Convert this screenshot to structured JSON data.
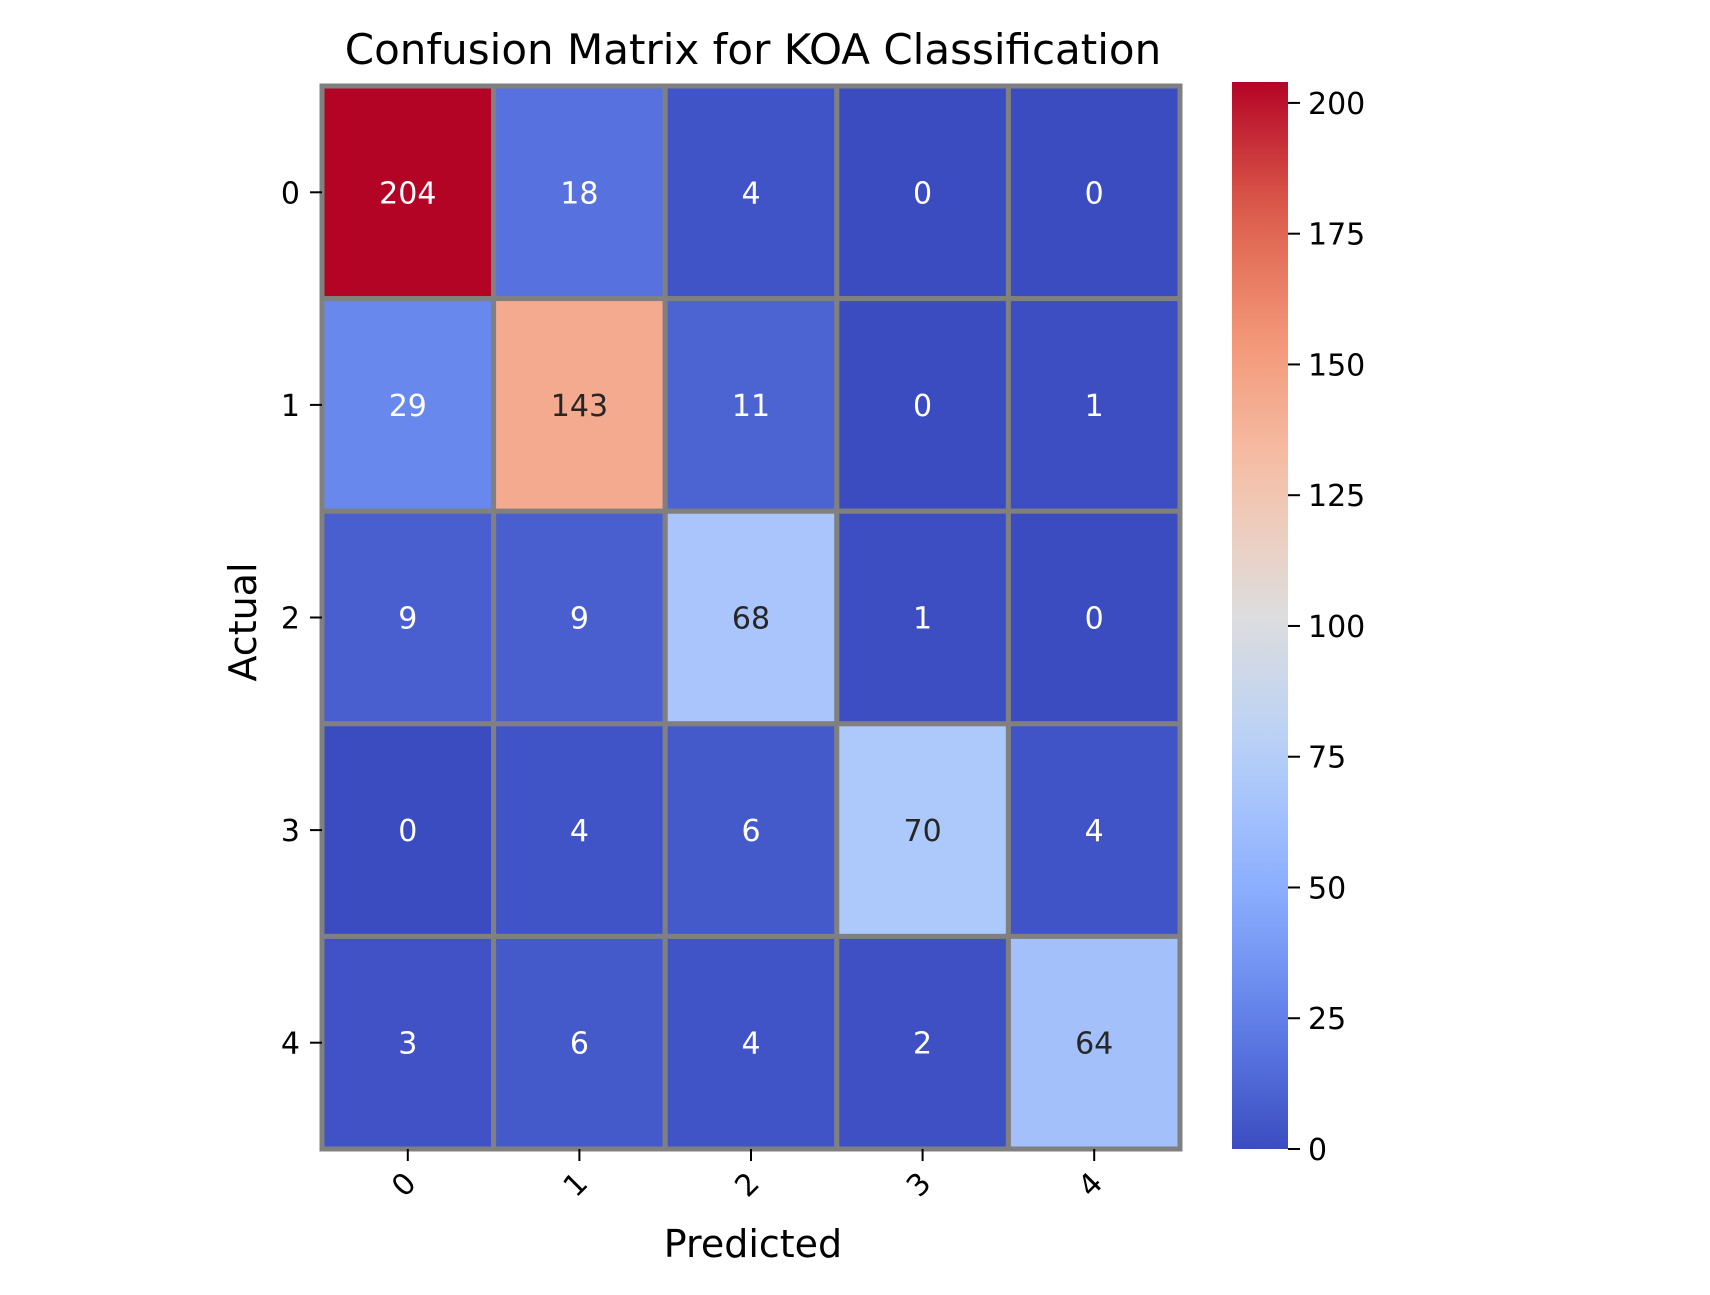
{
  "chart_data": {
    "type": "heatmap",
    "title": "Confusion Matrix for KOA Classification",
    "xlabel": "Predicted",
    "ylabel": "Actual",
    "x_categories": [
      "0",
      "1",
      "2",
      "3",
      "4"
    ],
    "y_categories": [
      "0",
      "1",
      "2",
      "3",
      "4"
    ],
    "values": [
      [
        204,
        18,
        4,
        0,
        0
      ],
      [
        29,
        143,
        11,
        0,
        1
      ],
      [
        9,
        9,
        68,
        1,
        0
      ],
      [
        0,
        4,
        6,
        70,
        4
      ],
      [
        3,
        6,
        4,
        2,
        64
      ]
    ],
    "colormap": "coolwarm",
    "cell_border_color": "#808080",
    "colorbar": {
      "vmin": 0,
      "vmax": 204,
      "ticks": [
        0,
        25,
        50,
        75,
        100,
        125,
        150,
        175,
        200
      ],
      "tick_labels": [
        "0",
        "25",
        "50",
        "75",
        "100",
        "125",
        "150",
        "175",
        "200"
      ]
    },
    "x_tick_rotation_deg": -45
  }
}
